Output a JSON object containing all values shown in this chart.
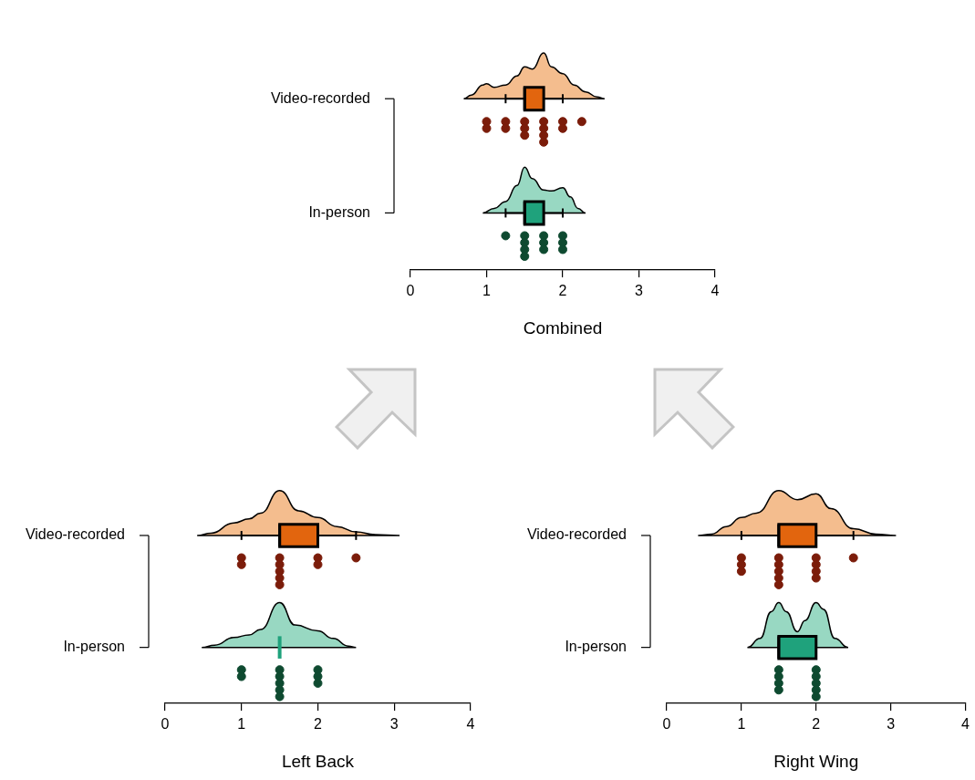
{
  "chart_data": [
    {
      "type": "box",
      "orientation": "horizontal",
      "categories": [
        "Video-recorded",
        "In-person"
      ],
      "xlabel": "Combined",
      "xlim": [
        0,
        4
      ],
      "xticks": [
        0,
        1,
        2,
        3,
        4
      ],
      "series": [
        {
          "type": "box",
          "colors": [
            "#e2650e",
            "#1fa27c"
          ],
          "boxes": [
            {
              "low": 1.25,
              "q1": 1.5,
              "median": 1.5,
              "q3": 1.75,
              "high": 2
            },
            {
              "low": 1.25,
              "q1": 1.5,
              "median": 1.5,
              "q3": 1.75,
              "high": 2
            }
          ]
        },
        {
          "type": "scatter",
          "color": "#7b1c0a",
          "x": [
            "Video-recorded",
            "Video-recorded",
            "Video-recorded",
            "Video-recorded",
            "Video-recorded",
            "Video-recorded",
            "Video-recorded",
            "Video-recorded",
            "Video-recorded",
            "Video-recorded",
            "Video-recorded",
            "Video-recorded",
            "Video-recorded",
            "Video-recorded"
          ],
          "values": [
            1,
            1,
            1.25,
            1.25,
            1.5,
            1.5,
            1.5,
            1.75,
            1.75,
            1.75,
            1.75,
            2,
            2,
            2.25
          ]
        },
        {
          "type": "scatter",
          "color": "#0e4a30",
          "x": [
            "In-person",
            "In-person",
            "In-person",
            "In-person",
            "In-person",
            "In-person",
            "In-person",
            "In-person",
            "In-person",
            "In-person",
            "In-person"
          ],
          "values": [
            1.25,
            1.5,
            1.5,
            1.5,
            1.5,
            1.75,
            1.75,
            1.75,
            2,
            2,
            2
          ]
        }
      ]
    },
    {
      "type": "box",
      "orientation": "horizontal",
      "categories": [
        "Video-recorded",
        "In-person"
      ],
      "xlabel": "Left Back",
      "xlim": [
        0,
        4
      ],
      "xticks": [
        0,
        1,
        2,
        3,
        4
      ],
      "series": [
        {
          "type": "box",
          "colors": [
            "#e2650e",
            "#1fa27c"
          ],
          "boxes": [
            {
              "low": 1,
              "q1": 1.5,
              "median": 1.5,
              "q3": 2,
              "high": 2.5
            },
            {
              "low": 1.5,
              "q1": 1.5,
              "median": 1.5,
              "q3": 1.5,
              "high": 1.5
            }
          ]
        },
        {
          "type": "scatter",
          "color": "#7b1c0a",
          "x": [
            "Video-recorded",
            "Video-recorded",
            "Video-recorded",
            "Video-recorded",
            "Video-recorded",
            "Video-recorded",
            "Video-recorded",
            "Video-recorded",
            "Video-recorded",
            "Video-recorded"
          ],
          "values": [
            1,
            1,
            1.5,
            1.5,
            1.5,
            1.5,
            1.5,
            2,
            2,
            2.5
          ]
        },
        {
          "type": "scatter",
          "color": "#0e4a30",
          "x": [
            "In-person",
            "In-person",
            "In-person",
            "In-person",
            "In-person",
            "In-person",
            "In-person",
            "In-person",
            "In-person",
            "In-person"
          ],
          "values": [
            1,
            1,
            1.5,
            1.5,
            1.5,
            1.5,
            1.5,
            2,
            2,
            2
          ]
        }
      ]
    },
    {
      "type": "box",
      "orientation": "horizontal",
      "categories": [
        "Video-recorded",
        "In-person"
      ],
      "xlabel": "Right Wing",
      "xlim": [
        0,
        4
      ],
      "xticks": [
        0,
        1,
        2,
        3,
        4
      ],
      "series": [
        {
          "type": "box",
          "colors": [
            "#e2650e",
            "#1fa27c"
          ],
          "boxes": [
            {
              "low": 1,
              "q1": 1.5,
              "median": 1.5,
              "q3": 2,
              "high": 2.5
            },
            {
              "low": 1.5,
              "q1": 1.5,
              "median": 1.5,
              "q3": 2,
              "high": 2
            }
          ]
        },
        {
          "type": "scatter",
          "color": "#7b1c0a",
          "x": [
            "Video-recorded",
            "Video-recorded",
            "Video-recorded",
            "Video-recorded",
            "Video-recorded",
            "Video-recorded",
            "Video-recorded",
            "Video-recorded",
            "Video-recorded",
            "Video-recorded",
            "Video-recorded",
            "Video-recorded",
            "Video-recorded"
          ],
          "values": [
            1,
            1,
            1,
            1.5,
            1.5,
            1.5,
            1.5,
            1.5,
            2,
            2,
            2,
            2,
            2.5
          ]
        },
        {
          "type": "scatter",
          "color": "#0e4a30",
          "x": [
            "In-person",
            "In-person",
            "In-person",
            "In-person",
            "In-person",
            "In-person",
            "In-person",
            "In-person",
            "In-person"
          ],
          "values": [
            1.5,
            1.5,
            1.5,
            1.5,
            2,
            2,
            2,
            2,
            2
          ]
        }
      ]
    }
  ]
}
